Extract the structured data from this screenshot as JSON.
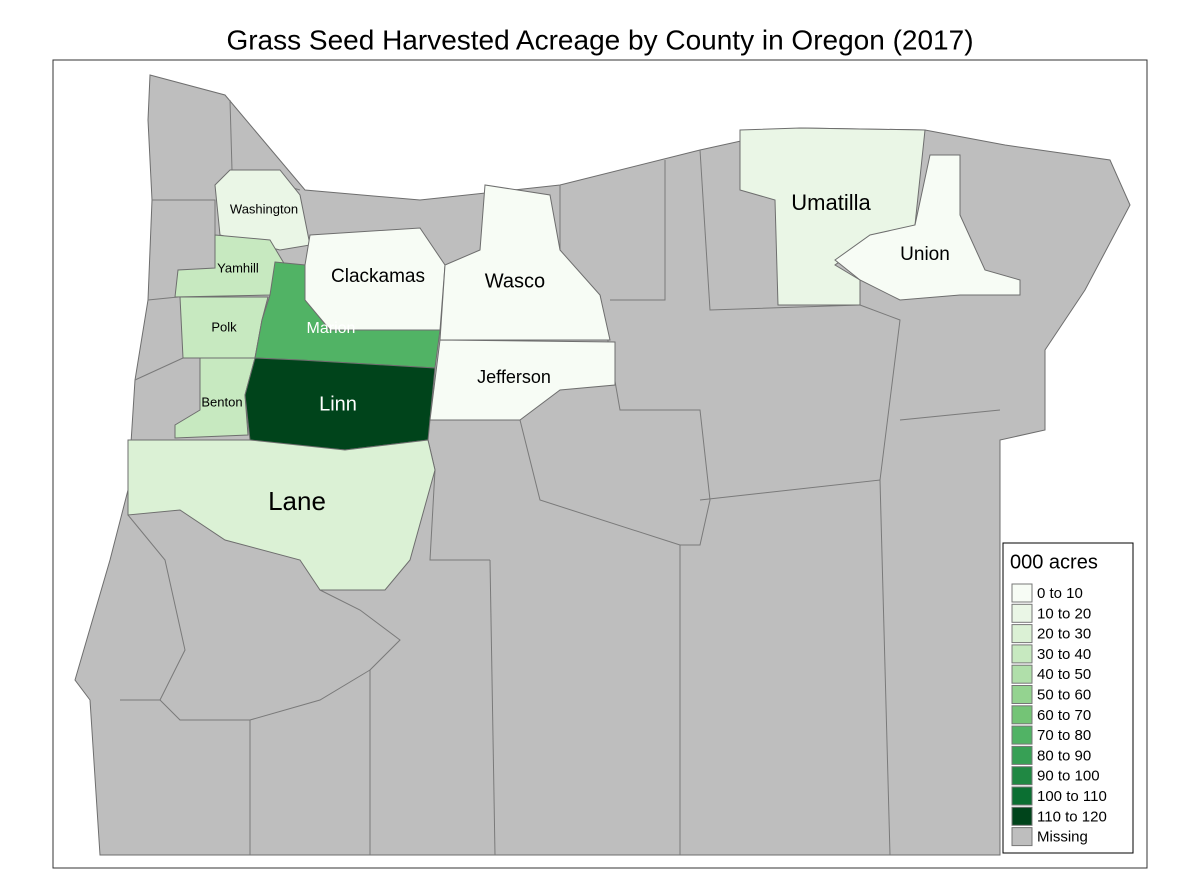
{
  "title": "Grass Seed Harvested Acreage by County in Oregon (2017)",
  "counties": [
    {
      "name": "Washington",
      "color": "#eaf6e6"
    },
    {
      "name": "Yamhill",
      "color": "#c7e9c0"
    },
    {
      "name": "Polk",
      "color": "#c7e9c0"
    },
    {
      "name": "Benton",
      "color": "#c7e9c0"
    },
    {
      "name": "Marion",
      "color": "#51b365"
    },
    {
      "name": "Linn",
      "color": "#00441b"
    },
    {
      "name": "Clackamas",
      "color": "#f7fcf5"
    },
    {
      "name": "Wasco",
      "color": "#f7fcf5"
    },
    {
      "name": "Jefferson",
      "color": "#f7fcf5"
    },
    {
      "name": "Lane",
      "color": "#dbf1d5"
    },
    {
      "name": "Umatilla",
      "color": "#eaf6e6"
    },
    {
      "name": "Union",
      "color": "#f7fcf5"
    }
  ],
  "missing_color": "#bebebe",
  "legend": {
    "title": "000 acres",
    "items": [
      {
        "label": "0 to 10",
        "color": "#f7fcf5"
      },
      {
        "label": "10 to 20",
        "color": "#eaf6e6"
      },
      {
        "label": "20 to 30",
        "color": "#dbf1d5"
      },
      {
        "label": "30 to 40",
        "color": "#c7e9c0"
      },
      {
        "label": "40 to 50",
        "color": "#b0dfaa"
      },
      {
        "label": "50 to 60",
        "color": "#94d390"
      },
      {
        "label": "60 to 70",
        "color": "#74c476"
      },
      {
        "label": "70 to 80",
        "color": "#51b365"
      },
      {
        "label": "80 to 90",
        "color": "#37a055"
      },
      {
        "label": "90 to 100",
        "color": "#208843"
      },
      {
        "label": "100 to 110",
        "color": "#0b6f32"
      },
      {
        "label": "110 to 120",
        "color": "#00441b"
      },
      {
        "label": "Missing",
        "color": "#bebebe"
      }
    ]
  }
}
